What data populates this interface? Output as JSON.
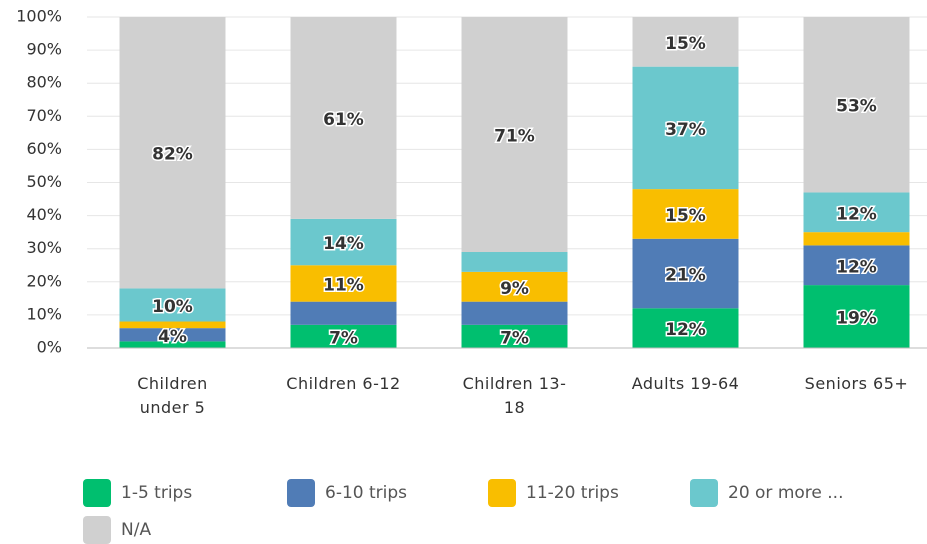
{
  "chart_data": {
    "type": "stacked_bar",
    "categories": [
      "Children under 5",
      "Children 6-12",
      "Children 13-18",
      "Adults 19-64",
      "Seniors 65+"
    ],
    "series": [
      {
        "name": "1-5 trips",
        "color": "#00bf6f",
        "values": [
          2,
          7,
          7,
          12,
          19
        ],
        "value_labels": [
          null,
          "7%",
          "7%",
          "12%",
          "19%"
        ]
      },
      {
        "name": "6-10 trips",
        "color": "#507cb6",
        "values": [
          4,
          7,
          7,
          21,
          12
        ],
        "value_labels": [
          "4%",
          null,
          null,
          "21%",
          "12%"
        ]
      },
      {
        "name": "11-20 trips",
        "color": "#f9be00",
        "values": [
          2,
          11,
          9,
          15,
          4
        ],
        "value_labels": [
          null,
          "11%",
          "9%",
          "15%",
          null
        ]
      },
      {
        "name": "20 or more ...",
        "color": "#6bc8cd",
        "values": [
          10,
          14,
          6,
          37,
          12
        ],
        "value_labels": [
          "10%",
          "14%",
          null,
          "37%",
          "12%"
        ]
      },
      {
        "name": "N/A",
        "color": "#d0d0d0",
        "values": [
          82,
          61,
          71,
          15,
          53
        ],
        "value_labels": [
          "82%",
          "61%",
          "71%",
          "15%",
          "53%"
        ]
      }
    ],
    "ylim": [
      0,
      100
    ],
    "yticks": [
      {
        "value": 0,
        "label": "0%"
      },
      {
        "value": 10,
        "label": "10%"
      },
      {
        "value": 20,
        "label": "20%"
      },
      {
        "value": 30,
        "label": "30%"
      },
      {
        "value": 40,
        "label": "40%"
      },
      {
        "value": 50,
        "label": "50%"
      },
      {
        "value": 60,
        "label": "60%"
      },
      {
        "value": 70,
        "label": "70%"
      },
      {
        "value": 80,
        "label": "80%"
      },
      {
        "value": 90,
        "label": "90%"
      },
      {
        "value": 100,
        "label": "100%"
      }
    ],
    "grid": true
  }
}
